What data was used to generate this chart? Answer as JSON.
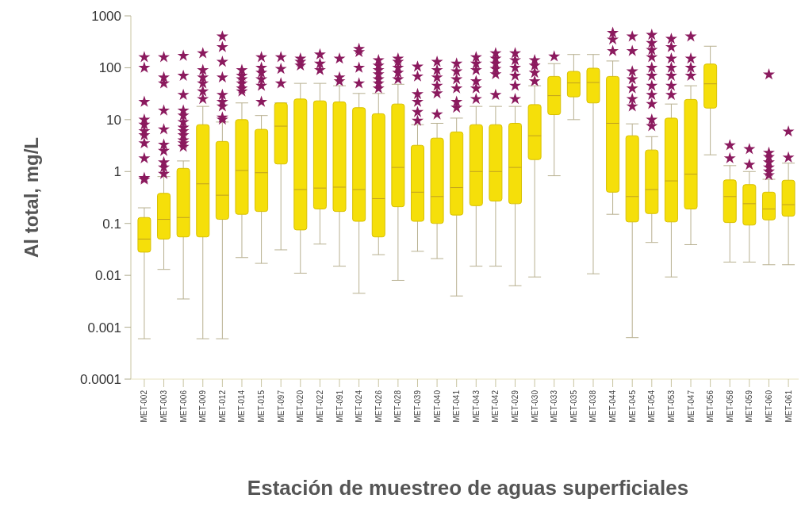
{
  "chart_data": {
    "type": "box",
    "xlabel": "Estación de muestreo de aguas superficiales",
    "ylabel": "Al total, mg/L",
    "categories": [
      "MET-002",
      "MET-003",
      "MET-006",
      "MET-009",
      "MET-012",
      "MET-014",
      "MET-015",
      "MET-097",
      "MET-020",
      "MET-022",
      "MET-091",
      "MET-024",
      "MET-026",
      "MET-028",
      "MET-039",
      "MET-040",
      "MET-041",
      "MET-043",
      "MET-042",
      "MET-029",
      "MET-030",
      "MET-033",
      "MET-035",
      "MET-038",
      "MET-044",
      "MET-045",
      "MET-054",
      "MET-053",
      "MET-047",
      "MET-056",
      "MET-058",
      "MET-059",
      "MET-060",
      "MET-061"
    ],
    "log": true,
    "ylim": [
      0.0001,
      1000
    ],
    "yticks": [
      0.0001,
      0.001,
      0.01,
      0.1,
      1,
      10,
      100,
      1000
    ],
    "grid": false,
    "marker": "star",
    "series": [
      {
        "color": "#f5df0a",
        "boxes": [
          {
            "low": 0.0006,
            "q1": 0.028,
            "median": 0.05,
            "q3": 0.13,
            "high": 0.2,
            "outliers": [
              0.7,
              0.75,
              1.8,
              3.5,
              5,
              6,
              8,
              10,
              22,
              100,
              160
            ]
          },
          {
            "low": 0.013,
            "q1": 0.05,
            "median": 0.12,
            "q3": 0.38,
            "high": 0.8,
            "outliers": [
              0.9,
              1.2,
              1.5,
              2.5,
              3.3,
              6.5,
              15,
              50,
              65,
              160
            ]
          },
          {
            "low": 0.0035,
            "q1": 0.055,
            "median": 0.13,
            "q3": 1.15,
            "high": 1.6,
            "outliers": [
              3,
              3.5,
              4,
              5,
              6,
              7,
              9,
              12,
              15,
              30,
              70,
              170
            ]
          },
          {
            "low": 0.0006,
            "q1": 0.055,
            "median": 0.58,
            "q3": 8,
            "high": 18,
            "outliers": [
              25,
              35,
              50,
              65,
              90,
              190
            ]
          },
          {
            "low": 0.0006,
            "q1": 0.12,
            "median": 0.35,
            "q3": 3.8,
            "high": 9,
            "outliers": [
              10,
              11,
              18,
              22,
              30,
              65,
              130,
              250,
              400
            ]
          },
          {
            "low": 0.022,
            "q1": 0.15,
            "median": 1.05,
            "q3": 10,
            "high": 21,
            "outliers": [
              35,
              40,
              50,
              60,
              70,
              90
            ]
          },
          {
            "low": 0.017,
            "q1": 0.17,
            "median": 0.95,
            "q3": 6.5,
            "high": 12,
            "outliers": [
              22,
              45,
              60,
              80,
              100,
              160
            ]
          },
          {
            "low": 0.031,
            "q1": 1.4,
            "median": 7.5,
            "q3": 21,
            "high": 21,
            "outliers": [
              50,
              95,
              160
            ]
          },
          {
            "low": 0.011,
            "q1": 0.075,
            "median": 0.45,
            "q3": 25,
            "high": 50,
            "outliers": [
              110,
              130,
              150
            ]
          },
          {
            "low": 0.04,
            "q1": 0.19,
            "median": 0.48,
            "q3": 23,
            "high": 50,
            "outliers": [
              90,
              120,
              180
            ]
          },
          {
            "low": 0.015,
            "q1": 0.17,
            "median": 0.5,
            "q3": 22,
            "high": 45,
            "outliers": [
              55,
              65,
              150
            ]
          },
          {
            "low": 0.0045,
            "q1": 0.11,
            "median": 0.45,
            "q3": 17,
            "high": 32,
            "outliers": [
              50,
              100,
              200,
              230
            ]
          },
          {
            "low": 0.025,
            "q1": 0.055,
            "median": 0.3,
            "q3": 13,
            "high": 32,
            "outliers": [
              40,
              50,
              60,
              75,
              90,
              110,
              140
            ]
          },
          {
            "low": 0.008,
            "q1": 0.21,
            "median": 1.2,
            "q3": 20,
            "high": 48,
            "outliers": [
              60,
              80,
              100,
              130,
              150
            ]
          },
          {
            "low": 0.029,
            "q1": 0.11,
            "median": 0.4,
            "q3": 3.2,
            "high": 8,
            "outliers": [
              9.5,
              14,
              22,
              31,
              68,
              105
            ]
          },
          {
            "low": 0.021,
            "q1": 0.1,
            "median": 0.33,
            "q3": 4.4,
            "high": 8.5,
            "outliers": [
              12.6,
              32,
              45,
              65,
              90,
              130
            ]
          },
          {
            "low": 0.004,
            "q1": 0.145,
            "median": 0.49,
            "q3": 5.8,
            "high": 10.7,
            "outliers": [
              17,
              22,
              40,
              60,
              85,
              120
            ]
          },
          {
            "low": 0.015,
            "q1": 0.22,
            "median": 1,
            "q3": 8,
            "high": 18,
            "outliers": [
              25,
              40,
              55,
              90,
              120,
              160
            ]
          },
          {
            "low": 0.015,
            "q1": 0.27,
            "median": 1,
            "q3": 8,
            "high": 18,
            "outliers": [
              30,
              75,
              95,
              120,
              150,
              190
            ]
          },
          {
            "low": 0.0063,
            "q1": 0.24,
            "median": 1.2,
            "q3": 8.5,
            "high": 18,
            "outliers": [
              25,
              45,
              70,
              100,
              140,
              190
            ]
          },
          {
            "low": 0.0093,
            "q1": 1.7,
            "median": 4.9,
            "q3": 19.5,
            "high": 45,
            "outliers": [
              55,
              80,
              110,
              140
            ]
          },
          {
            "low": 0.83,
            "q1": 12.5,
            "median": 29,
            "q3": 68,
            "high": 120,
            "outliers": [
              165
            ]
          },
          {
            "low": 10,
            "q1": 27.5,
            "median": 51,
            "q3": 85,
            "high": 180
          },
          {
            "low": 0.0107,
            "q1": 21,
            "median": 52,
            "q3": 98,
            "high": 180
          },
          {
            "low": 0.15,
            "q1": 0.4,
            "median": 8.5,
            "q3": 68,
            "high": 135,
            "outliers": [
              210,
              350,
              470
            ]
          },
          {
            "low": 0.00063,
            "q1": 0.107,
            "median": 0.33,
            "q3": 4.9,
            "high": 8.3,
            "outliers": [
              18,
              25,
              40,
              60,
              85,
              210,
              400
            ]
          },
          {
            "low": 0.043,
            "q1": 0.155,
            "median": 0.45,
            "q3": 2.6,
            "high": 4.7,
            "outliers": [
              7.5,
              10,
              20,
              30,
              45,
              70,
              100,
              160,
              220,
              300,
              430
            ]
          },
          {
            "low": 0.0093,
            "q1": 0.107,
            "median": 0.66,
            "q3": 10.7,
            "high": 20,
            "outliers": [
              30,
              45,
              70,
              100,
              150,
              250,
              360
            ]
          },
          {
            "low": 0.039,
            "q1": 0.19,
            "median": 0.89,
            "q3": 24.5,
            "high": 45,
            "outliers": [
              70,
              100,
              150,
              400
            ]
          },
          {
            "low": 2.1,
            "q1": 16.7,
            "median": 49,
            "q3": 118,
            "high": 260
          },
          {
            "low": 0.018,
            "q1": 0.104,
            "median": 0.33,
            "q3": 0.69,
            "high": 1.3,
            "outliers": [
              1.8,
              3.2
            ]
          },
          {
            "low": 0.018,
            "q1": 0.093,
            "median": 0.24,
            "q3": 0.56,
            "high": 1,
            "outliers": [
              1.35,
              2.7
            ]
          },
          {
            "low": 0.016,
            "q1": 0.117,
            "median": 0.19,
            "q3": 0.4,
            "high": 0.71,
            "outliers": [
              0.85,
              1,
              1.2,
              1.5,
              1.9,
              2.3,
              74
            ]
          },
          {
            "low": 0.016,
            "q1": 0.138,
            "median": 0.23,
            "q3": 0.68,
            "high": 1.45,
            "outliers": [
              1.86,
              5.9
            ]
          }
        ]
      }
    ]
  }
}
